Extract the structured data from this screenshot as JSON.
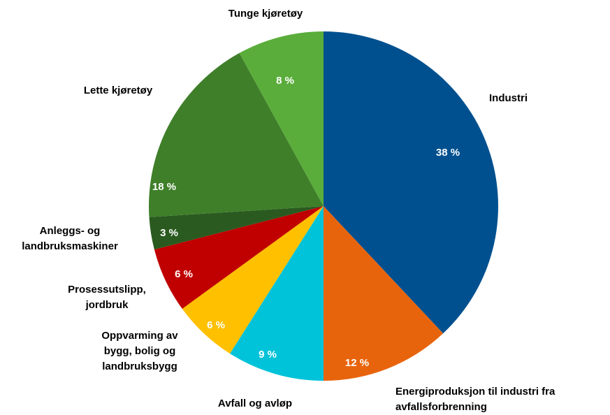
{
  "chart_data": {
    "type": "pie",
    "categories": [
      "Industri",
      "Energiproduksjon til industri fra\navfallsforbrenning",
      "Avfall og avløp",
      "Oppvarming av\nbygg, bolig og\nlandbruksbygg",
      "Prosessutslipp,\njordbruk",
      "Anleggs- og\nlandbruksmaskiner",
      "Lette kjøretøy",
      "Tunge kjøretøy"
    ],
    "values": [
      38,
      12,
      9,
      6,
      6,
      3,
      18,
      8
    ],
    "value_labels": [
      "38 %",
      "12 %",
      "9 %",
      "6 %",
      "6 %",
      "3 %",
      "18 %",
      "8 %"
    ],
    "colors": [
      "#00508f",
      "#e8640c",
      "#00c3d9",
      "#ffc000",
      "#c00000",
      "#2a5a1f",
      "#3f7f2a",
      "#5aad3a"
    ]
  }
}
